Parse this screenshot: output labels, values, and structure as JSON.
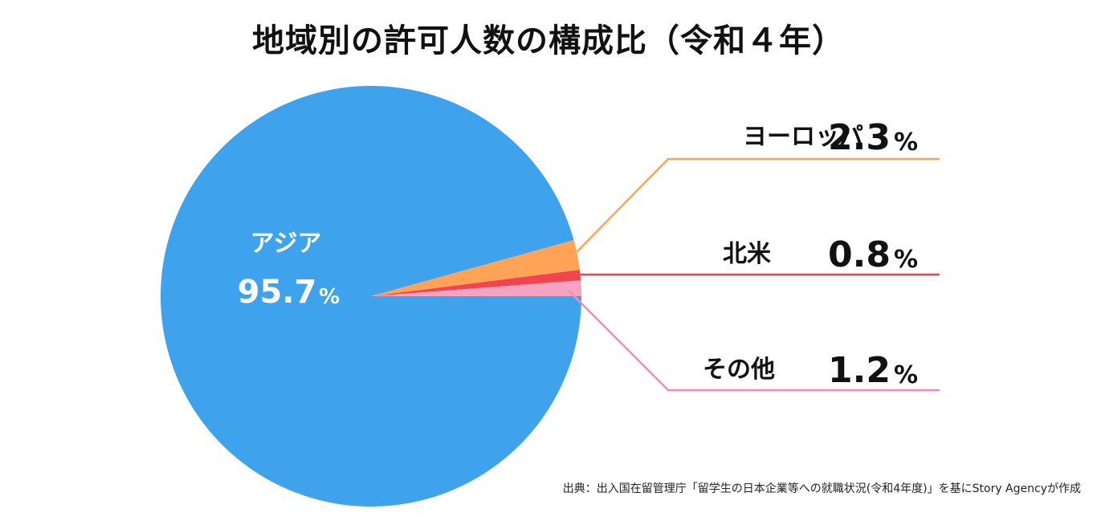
{
  "chart_data": {
    "type": "pie",
    "title": "地域別の許可人数の構成比（令和４年）",
    "unit": "%",
    "slices": [
      {
        "name": "アジア",
        "value": 95.7,
        "value_text": "95.7",
        "color": "#3ea3ec"
      },
      {
        "name": "ヨーロッパ",
        "value": 2.3,
        "value_text": "2.3",
        "color": "#ffa456",
        "line_color": "#ffa456"
      },
      {
        "name": "北米",
        "value": 0.8,
        "value_text": "0.8",
        "color": "#f0444f",
        "line_color": "#f0444f"
      },
      {
        "name": "その他",
        "value": 1.2,
        "value_text": "1.2",
        "color": "#f5a3c0",
        "line_color": "#f48bb5"
      }
    ],
    "source": "出典：出入国在留管理庁「留学生の日本企業等への就職状況(令和4年度)」を基にStory Agencyが作成"
  }
}
